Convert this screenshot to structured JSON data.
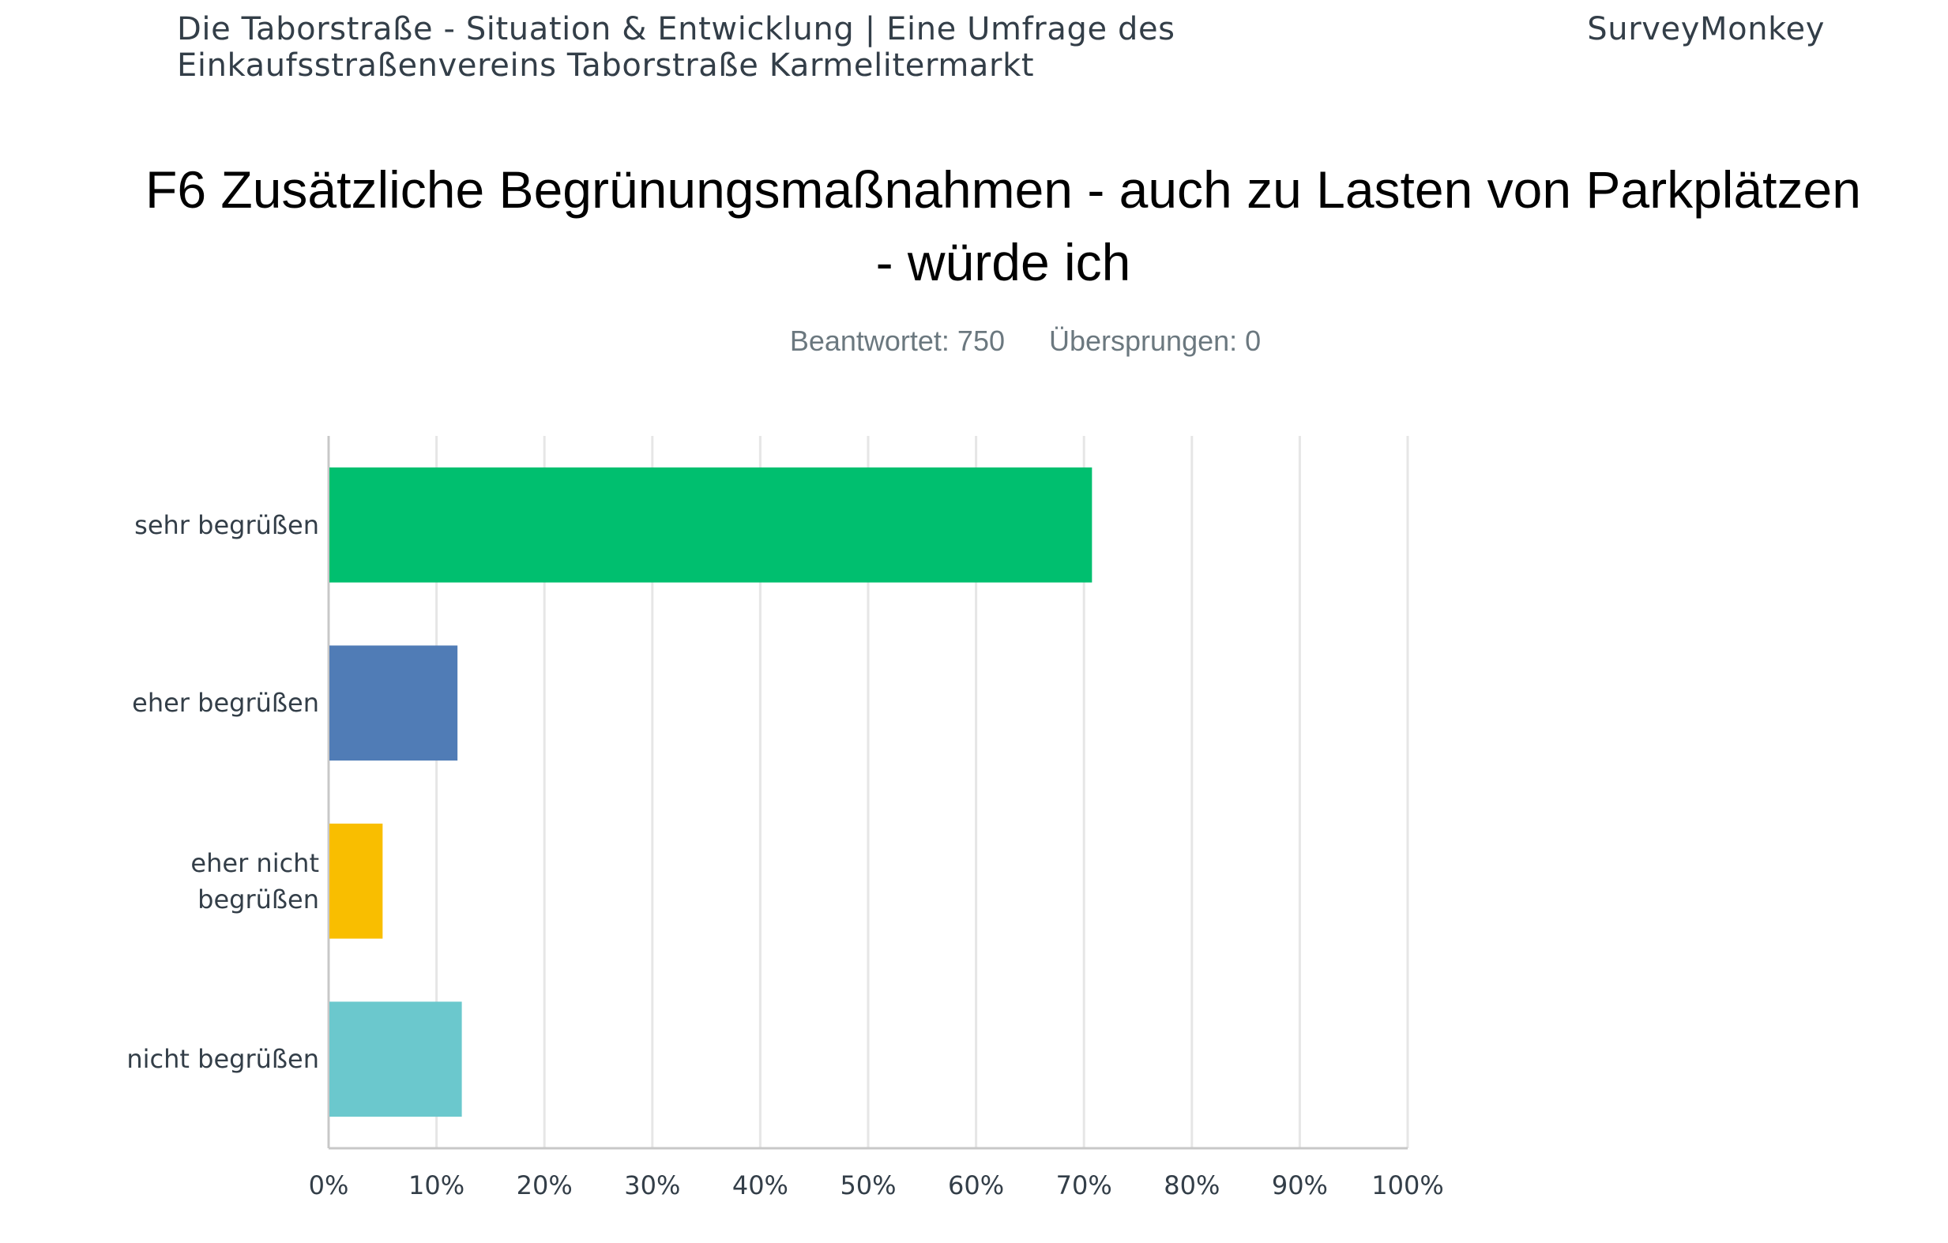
{
  "header": {
    "survey_title_line1": "Die Taborstraße - Situation & Entwicklung | Eine Umfrage des",
    "survey_title_line2": "Einkaufsstraßenvereins Taborstraße Karmelitermarkt",
    "brand": "SurveyMonkey"
  },
  "question": {
    "line1": "F6 Zusätzliche Begrünungsmaßnahmen - auch zu Lasten von Parkplätzen",
    "line2": "- würde ich"
  },
  "stats": {
    "answered": "Beantwortet: 750",
    "skipped": "Übersprungen: 0"
  },
  "colors": {
    "grid": "#e6e6e6",
    "axis": "#c8c8c8"
  },
  "chart_data": {
    "type": "bar",
    "orientation": "horizontal",
    "categories": [
      [
        "sehr begrüßen"
      ],
      [
        "eher begrüßen"
      ],
      [
        "eher nicht",
        "begrüßen"
      ],
      [
        "nicht begrüßen"
      ]
    ],
    "values": [
      70.67,
      11.87,
      4.93,
      12.27
    ],
    "colors": [
      "#00bf6f",
      "#507cb6",
      "#f9be00",
      "#6bc8cd"
    ],
    "xlim": [
      0,
      100
    ],
    "xticks": [
      "0%",
      "10%",
      "20%",
      "30%",
      "40%",
      "50%",
      "60%",
      "70%",
      "80%",
      "90%",
      "100%"
    ],
    "grid": true,
    "unit": "%"
  }
}
